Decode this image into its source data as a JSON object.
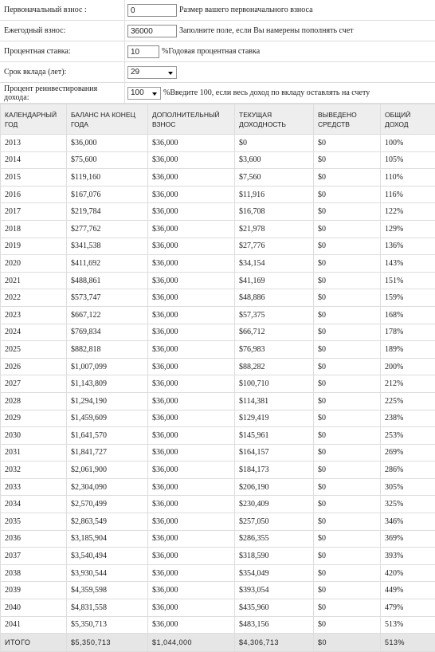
{
  "form": {
    "rows": [
      {
        "label": "Первоначальный взнос :",
        "value": "0",
        "hint": "Размер вашего первоначального взноса"
      },
      {
        "label": "Ежегодный взнос:",
        "value": "36000",
        "hint": "Заполните поле, если Вы намерены пополнять счет"
      },
      {
        "label": "Процентная ставка:",
        "value": "10",
        "hint": "%Годовая процентная ставка"
      },
      {
        "label": "Срок вклада (лет):",
        "value": "29"
      },
      {
        "label": "Процент реинвестирования дохода:",
        "value": "100",
        "hint": "%Введите 100, если весь доход по вкладу оставлять на счету"
      }
    ]
  },
  "table": {
    "columns": [
      "КАЛЕНДАРНЫЙ ГОД",
      "БАЛАНС НА КОНЕЦ ГОДА",
      "ДОПОЛНИТЕЛЬНЫЙ ВЗНОС",
      "ТЕКУЩАЯ ДОХОДНОСТЬ",
      "ВЫВЕДЕНО СРЕДСТВ",
      "ОБЩИЙ ДОХОД"
    ],
    "rows": [
      [
        "2013",
        "$36,000",
        "$36,000",
        "$0",
        "$0",
        "100%"
      ],
      [
        "2014",
        "$75,600",
        "$36,000",
        "$3,600",
        "$0",
        "105%"
      ],
      [
        "2015",
        "$119,160",
        "$36,000",
        "$7,560",
        "$0",
        "110%"
      ],
      [
        "2016",
        "$167,076",
        "$36,000",
        "$11,916",
        "$0",
        "116%"
      ],
      [
        "2017",
        "$219,784",
        "$36,000",
        "$16,708",
        "$0",
        "122%"
      ],
      [
        "2018",
        "$277,762",
        "$36,000",
        "$21,978",
        "$0",
        "129%"
      ],
      [
        "2019",
        "$341,538",
        "$36,000",
        "$27,776",
        "$0",
        "136%"
      ],
      [
        "2020",
        "$411,692",
        "$36,000",
        "$34,154",
        "$0",
        "143%"
      ],
      [
        "2021",
        "$488,861",
        "$36,000",
        "$41,169",
        "$0",
        "151%"
      ],
      [
        "2022",
        "$573,747",
        "$36,000",
        "$48,886",
        "$0",
        "159%"
      ],
      [
        "2023",
        "$667,122",
        "$36,000",
        "$57,375",
        "$0",
        "168%"
      ],
      [
        "2024",
        "$769,834",
        "$36,000",
        "$66,712",
        "$0",
        "178%"
      ],
      [
        "2025",
        "$882,818",
        "$36,000",
        "$76,983",
        "$0",
        "189%"
      ],
      [
        "2026",
        "$1,007,099",
        "$36,000",
        "$88,282",
        "$0",
        "200%"
      ],
      [
        "2027",
        "$1,143,809",
        "$36,000",
        "$100,710",
        "$0",
        "212%"
      ],
      [
        "2028",
        "$1,294,190",
        "$36,000",
        "$114,381",
        "$0",
        "225%"
      ],
      [
        "2029",
        "$1,459,609",
        "$36,000",
        "$129,419",
        "$0",
        "238%"
      ],
      [
        "2030",
        "$1,641,570",
        "$36,000",
        "$145,961",
        "$0",
        "253%"
      ],
      [
        "2031",
        "$1,841,727",
        "$36,000",
        "$164,157",
        "$0",
        "269%"
      ],
      [
        "2032",
        "$2,061,900",
        "$36,000",
        "$184,173",
        "$0",
        "286%"
      ],
      [
        "2033",
        "$2,304,090",
        "$36,000",
        "$206,190",
        "$0",
        "305%"
      ],
      [
        "2034",
        "$2,570,499",
        "$36,000",
        "$230,409",
        "$0",
        "325%"
      ],
      [
        "2035",
        "$2,863,549",
        "$36,000",
        "$257,050",
        "$0",
        "346%"
      ],
      [
        "2036",
        "$3,185,904",
        "$36,000",
        "$286,355",
        "$0",
        "369%"
      ],
      [
        "2037",
        "$3,540,494",
        "$36,000",
        "$318,590",
        "$0",
        "393%"
      ],
      [
        "2038",
        "$3,930,544",
        "$36,000",
        "$354,049",
        "$0",
        "420%"
      ],
      [
        "2039",
        "$4,359,598",
        "$36,000",
        "$393,054",
        "$0",
        "449%"
      ],
      [
        "2040",
        "$4,831,558",
        "$36,000",
        "$435,960",
        "$0",
        "479%"
      ],
      [
        "2041",
        "$5,350,713",
        "$36,000",
        "$483,156",
        "$0",
        "513%"
      ]
    ],
    "total": [
      "ИТОГО",
      "$5,350,713",
      "$1,044,000",
      "$4,306,713",
      "$0",
      "513%"
    ]
  }
}
